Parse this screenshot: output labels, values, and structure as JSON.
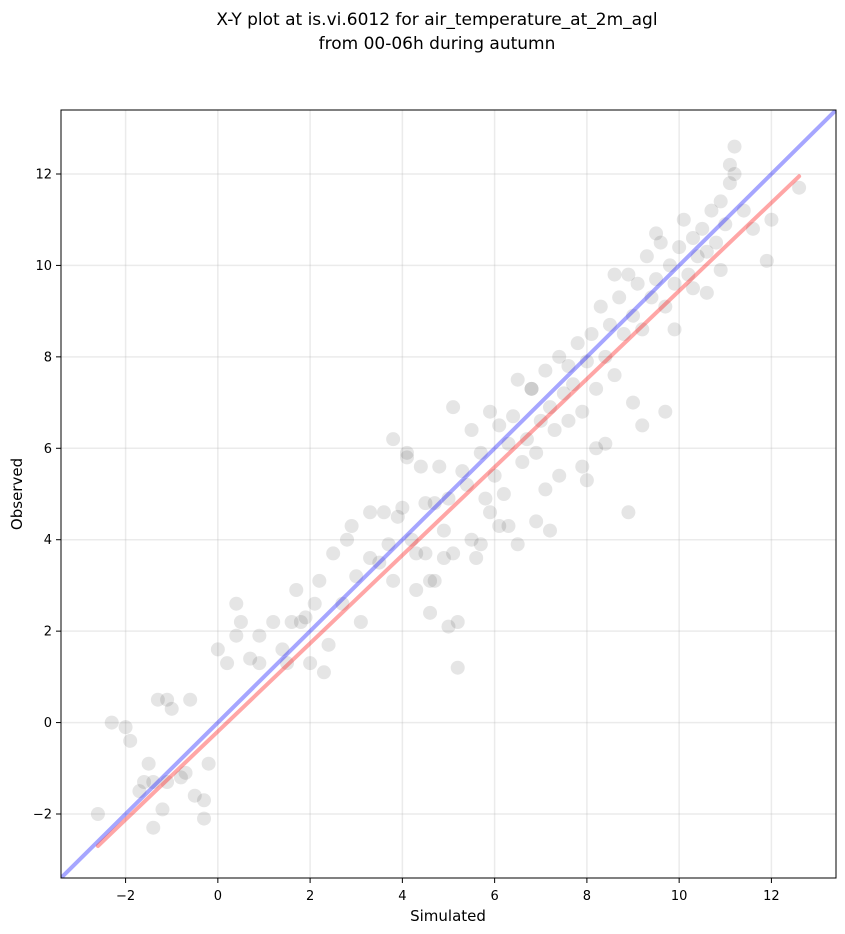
{
  "title_line1": "X-Y plot at is.vi.6012 for air_temperature_at_2m_agl",
  "title_line2": "from 00-06h during autumn",
  "chart_data": {
    "type": "scatter",
    "title": "X-Y plot at is.vi.6012 for air_temperature_at_2m_agl\nfrom 00-06h during autumn",
    "xlabel": "Simulated",
    "ylabel": "Observed",
    "xlim": [
      -3.4,
      13.4
    ],
    "ylim": [
      -3.4,
      13.4
    ],
    "xticks": [
      -2,
      0,
      2,
      4,
      6,
      8,
      10,
      12
    ],
    "yticks": [
      -2,
      0,
      2,
      4,
      6,
      8,
      10,
      12
    ],
    "grid": true,
    "points_color": "#000000",
    "points_alpha": 0.1,
    "series": [
      {
        "kind": "points",
        "x": [
          -2.6,
          -2.3,
          -2.0,
          -1.9,
          -1.7,
          -1.6,
          -1.5,
          -1.4,
          -1.3,
          -1.2,
          -1.1,
          -1.0,
          -0.8,
          -0.7,
          -0.6,
          -0.5,
          -0.3,
          -0.2,
          0.0,
          0.2,
          0.4,
          0.5,
          0.7,
          0.9,
          1.2,
          1.4,
          1.5,
          1.7,
          1.8,
          2.0,
          2.1,
          2.2,
          2.4,
          2.5,
          2.7,
          2.8,
          3.0,
          3.1,
          3.3,
          3.5,
          3.6,
          3.7,
          3.8,
          3.9,
          4.0,
          4.1,
          4.2,
          4.3,
          4.4,
          4.5,
          4.6,
          4.7,
          4.8,
          4.9,
          5.0,
          5.1,
          5.2,
          5.3,
          5.4,
          5.5,
          5.6,
          5.7,
          5.8,
          5.9,
          6.0,
          6.1,
          6.2,
          6.3,
          6.4,
          6.5,
          6.6,
          6.7,
          6.8,
          6.9,
          7.0,
          7.1,
          7.2,
          7.3,
          7.4,
          7.5,
          7.6,
          7.7,
          7.8,
          7.9,
          8.0,
          8.1,
          8.2,
          8.3,
          8.4,
          8.5,
          8.6,
          8.7,
          8.8,
          8.9,
          9.0,
          9.1,
          9.2,
          9.3,
          9.4,
          9.5,
          9.6,
          9.7,
          9.8,
          9.9,
          10.0,
          10.1,
          10.2,
          10.3,
          10.4,
          10.5,
          10.6,
          10.7,
          10.8,
          10.9,
          11.0,
          11.1,
          11.2,
          11.4,
          11.6,
          11.9,
          12.0,
          12.6,
          3.8,
          4.1,
          4.6,
          5.0,
          5.2,
          5.1,
          4.7,
          6.3,
          7.2,
          8.9,
          9.7,
          8.0,
          4.5,
          3.3,
          2.9,
          6.8,
          7.6,
          9.2,
          10.3,
          5.9,
          4.3,
          6.5,
          8.4,
          9.0,
          7.4,
          11.1,
          11.2,
          1.6,
          0.9,
          2.3,
          -1.4,
          -1.1,
          -0.3,
          0.4,
          1.9,
          8.6,
          9.5,
          10.9,
          7.9,
          6.1,
          5.5,
          4.9,
          5.7,
          6.9,
          7.1,
          8.2,
          9.9,
          10.6
        ],
        "y": [
          -2.0,
          0.0,
          -0.1,
          -0.4,
          -1.5,
          -1.3,
          -0.9,
          -2.3,
          0.5,
          -1.9,
          0.5,
          0.3,
          -1.2,
          -1.1,
          0.5,
          -1.6,
          -1.7,
          -0.9,
          1.6,
          1.3,
          2.6,
          2.2,
          1.4,
          1.9,
          2.2,
          1.6,
          1.3,
          2.9,
          2.2,
          1.3,
          2.6,
          3.1,
          1.7,
          3.7,
          2.6,
          4.0,
          3.2,
          2.2,
          3.6,
          3.5,
          4.6,
          3.9,
          3.1,
          4.5,
          4.7,
          5.8,
          4.0,
          3.7,
          5.6,
          4.8,
          2.4,
          3.1,
          5.6,
          4.2,
          4.9,
          3.7,
          2.2,
          5.5,
          5.2,
          6.4,
          3.6,
          5.9,
          4.9,
          6.8,
          5.4,
          6.5,
          5.0,
          6.1,
          6.7,
          7.5,
          5.7,
          6.2,
          7.3,
          5.9,
          6.6,
          7.7,
          6.9,
          6.4,
          8.0,
          7.2,
          6.6,
          7.4,
          8.3,
          6.8,
          7.9,
          8.5,
          7.3,
          9.1,
          8.0,
          8.7,
          7.6,
          9.3,
          8.5,
          9.8,
          8.9,
          9.6,
          8.6,
          10.2,
          9.3,
          9.7,
          10.5,
          9.1,
          10.0,
          9.6,
          10.4,
          11.0,
          9.8,
          10.6,
          10.2,
          10.8,
          10.3,
          11.2,
          10.5,
          11.4,
          10.9,
          12.2,
          12.6,
          11.2,
          10.8,
          10.1,
          11.0,
          11.7,
          6.2,
          5.9,
          3.1,
          2.1,
          1.2,
          6.9,
          4.8,
          4.3,
          4.2,
          4.6,
          6.8,
          5.3,
          3.7,
          4.6,
          4.3,
          7.3,
          7.8,
          6.5,
          9.5,
          4.6,
          2.9,
          3.9,
          6.1,
          7.0,
          5.4,
          11.8,
          12.0,
          2.2,
          1.3,
          1.1,
          -1.3,
          -1.3,
          -2.1,
          1.9,
          2.3,
          9.8,
          10.7,
          9.9,
          5.6,
          4.3,
          4.0,
          3.6,
          3.9,
          4.4,
          5.1,
          6.0,
          8.6,
          9.4
        ]
      },
      {
        "kind": "line",
        "name": "",
        "color": "#0000ff",
        "alpha": 0.35,
        "x": [
          -3.4,
          13.4
        ],
        "y": [
          -3.4,
          13.4
        ]
      },
      {
        "kind": "line",
        "name": "",
        "color": "#ff0000",
        "alpha": 0.35,
        "x": [
          -2.6,
          12.6
        ],
        "y": [
          -2.7,
          11.95
        ]
      }
    ]
  }
}
